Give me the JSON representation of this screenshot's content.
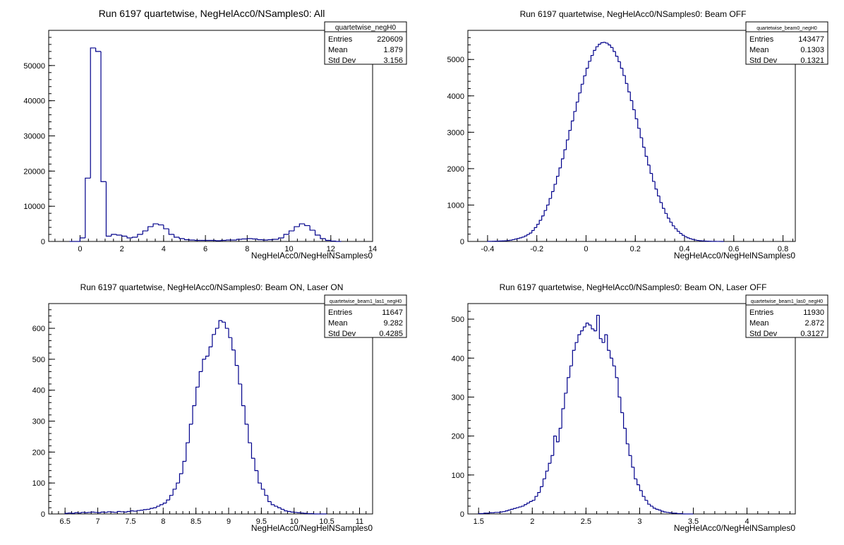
{
  "chart_data": [
    {
      "type": "histogram",
      "title": "Run 6197 quartetwise, NegHelAcc0/NSamples0: All",
      "xlabel": "NegHelAcc0/NegHelNSamples0",
      "ylabel": "",
      "xlim": [
        -1.5,
        14.0
      ],
      "ylim": [
        0,
        60000
      ],
      "xticks": [
        0,
        2,
        4,
        6,
        8,
        10,
        12,
        14
      ],
      "yticks": [
        0,
        10000,
        20000,
        30000,
        40000,
        50000
      ],
      "bin_width": 0.25,
      "bin_start": -0.5,
      "values": [
        0,
        0,
        1000,
        18000,
        55000,
        54000,
        17000,
        1500,
        2000,
        1800,
        1500,
        1000,
        1200,
        2000,
        3000,
        4200,
        5000,
        4700,
        3600,
        2000,
        1200,
        800,
        500,
        400,
        300,
        300,
        300,
        300,
        200,
        300,
        400,
        400,
        600,
        700,
        800,
        700,
        500,
        400,
        500,
        600,
        1000,
        2000,
        3000,
        4200,
        5000,
        4500,
        3200,
        1800,
        800,
        300,
        100,
        0
      ],
      "stats": {
        "name": "quartetwise_negH0",
        "rows": [
          [
            "Entries",
            "220609"
          ],
          [
            "Mean",
            "1.879"
          ],
          [
            "Std Dev",
            "3.156"
          ]
        ]
      }
    },
    {
      "type": "histogram",
      "title": "Run 6197 quartetwise, NegHelAcc0/NSamples0: Beam OFF",
      "xlabel": "NegHelAcc0/NegHelNSamples0",
      "ylabel": "",
      "xlim": [
        -0.48,
        0.85
      ],
      "ylim": [
        0,
        5800
      ],
      "xticks": [
        -0.4,
        -0.2,
        0,
        0.2,
        0.4,
        0.6,
        0.8
      ],
      "yticks": [
        0,
        1000,
        2000,
        3000,
        4000,
        5000
      ],
      "bin_width": 0.01,
      "bin_start": -0.4,
      "values": [
        3,
        4,
        6,
        8,
        10,
        12,
        15,
        18,
        25,
        35,
        50,
        65,
        80,
        100,
        120,
        150,
        190,
        230,
        300,
        380,
        470,
        580,
        700,
        850,
        1000,
        1180,
        1370,
        1570,
        1790,
        2020,
        2270,
        2520,
        2790,
        3050,
        3310,
        3570,
        3830,
        4080,
        4320,
        4550,
        4760,
        4950,
        5110,
        5250,
        5350,
        5420,
        5460,
        5470,
        5450,
        5400,
        5330,
        5220,
        5090,
        4940,
        4760,
        4560,
        4340,
        4110,
        3870,
        3620,
        3370,
        3110,
        2850,
        2590,
        2340,
        2100,
        1870,
        1650,
        1440,
        1250,
        1070,
        910,
        770,
        640,
        530,
        430,
        350,
        280,
        220,
        170,
        130,
        100,
        75,
        55,
        40,
        28,
        20,
        14,
        10,
        7,
        5,
        3,
        2,
        1,
        1,
        0
      ],
      "stats": {
        "name": "quartetwise_beam0_negH0",
        "rows": [
          [
            "Entries",
            "143477"
          ],
          [
            "Mean",
            "0.1303"
          ],
          [
            "Std Dev",
            "0.1321"
          ]
        ]
      }
    },
    {
      "type": "histogram",
      "title": "Run 6197 quartetwise, NegHelAcc0/NSamples0: Beam ON, Laser ON",
      "xlabel": "NegHelAcc0/NegHelNSamples0",
      "ylabel": "",
      "xlim": [
        6.25,
        11.2
      ],
      "ylim": [
        0,
        680
      ],
      "xticks": [
        6.5,
        7,
        7.5,
        8,
        8.5,
        9,
        9.5,
        10,
        10.5,
        11
      ],
      "yticks": [
        0,
        100,
        200,
        300,
        400,
        500,
        600
      ],
      "bin_width": 0.05,
      "bin_start": 6.5,
      "values": [
        2,
        3,
        2,
        4,
        3,
        5,
        4,
        5,
        6,
        5,
        4,
        6,
        5,
        7,
        6,
        5,
        8,
        7,
        6,
        8,
        10,
        9,
        11,
        12,
        14,
        15,
        18,
        20,
        25,
        30,
        35,
        45,
        60,
        80,
        100,
        130,
        170,
        230,
        290,
        350,
        410,
        460,
        500,
        510,
        540,
        580,
        600,
        625,
        620,
        600,
        570,
        530,
        480,
        420,
        350,
        290,
        230,
        180,
        140,
        100,
        80,
        60,
        40,
        30,
        25,
        20,
        15,
        10,
        8,
        6,
        5,
        4,
        3,
        2,
        1,
        1,
        0,
        0,
        0,
        0
      ],
      "stats": {
        "name": "quartetwise_beam1_las1_negH0",
        "rows": [
          [
            "Entries",
            "11647"
          ],
          [
            "Mean",
            "9.282"
          ],
          [
            "Std Dev",
            "0.4285"
          ]
        ]
      }
    },
    {
      "type": "histogram",
      "title": "Run 6197 quartetwise, NegHelAcc0/NSamples0: Beam ON, Laser OFF",
      "xlabel": "NegHelAcc0/NegHelNSamples0",
      "ylabel": "",
      "xlim": [
        1.4,
        4.45
      ],
      "ylim": [
        0,
        540
      ],
      "xticks": [
        1.5,
        2,
        2.5,
        3,
        3.5,
        4
      ],
      "yticks": [
        0,
        100,
        200,
        300,
        400,
        500
      ],
      "bin_width": 0.025,
      "bin_start": 1.5,
      "values": [
        1,
        1,
        2,
        2,
        3,
        3,
        4,
        4,
        5,
        6,
        8,
        10,
        12,
        14,
        16,
        18,
        20,
        24,
        28,
        32,
        35,
        45,
        55,
        70,
        90,
        110,
        130,
        150,
        200,
        185,
        220,
        270,
        310,
        350,
        380,
        420,
        440,
        460,
        470,
        480,
        490,
        485,
        475,
        470,
        510,
        450,
        440,
        460,
        420,
        400,
        380,
        350,
        300,
        260,
        220,
        180,
        150,
        120,
        90,
        75,
        60,
        45,
        35,
        25,
        20,
        15,
        12,
        10,
        7,
        5,
        4,
        3,
        2,
        2,
        1,
        1,
        0,
        0,
        0,
        0
      ],
      "stats": {
        "name": "quartetwise_beam1_las0_negH0",
        "rows": [
          [
            "Entries",
            "11930"
          ],
          [
            "Mean",
            "2.872"
          ],
          [
            "Std Dev",
            "0.3127"
          ]
        ]
      }
    }
  ]
}
